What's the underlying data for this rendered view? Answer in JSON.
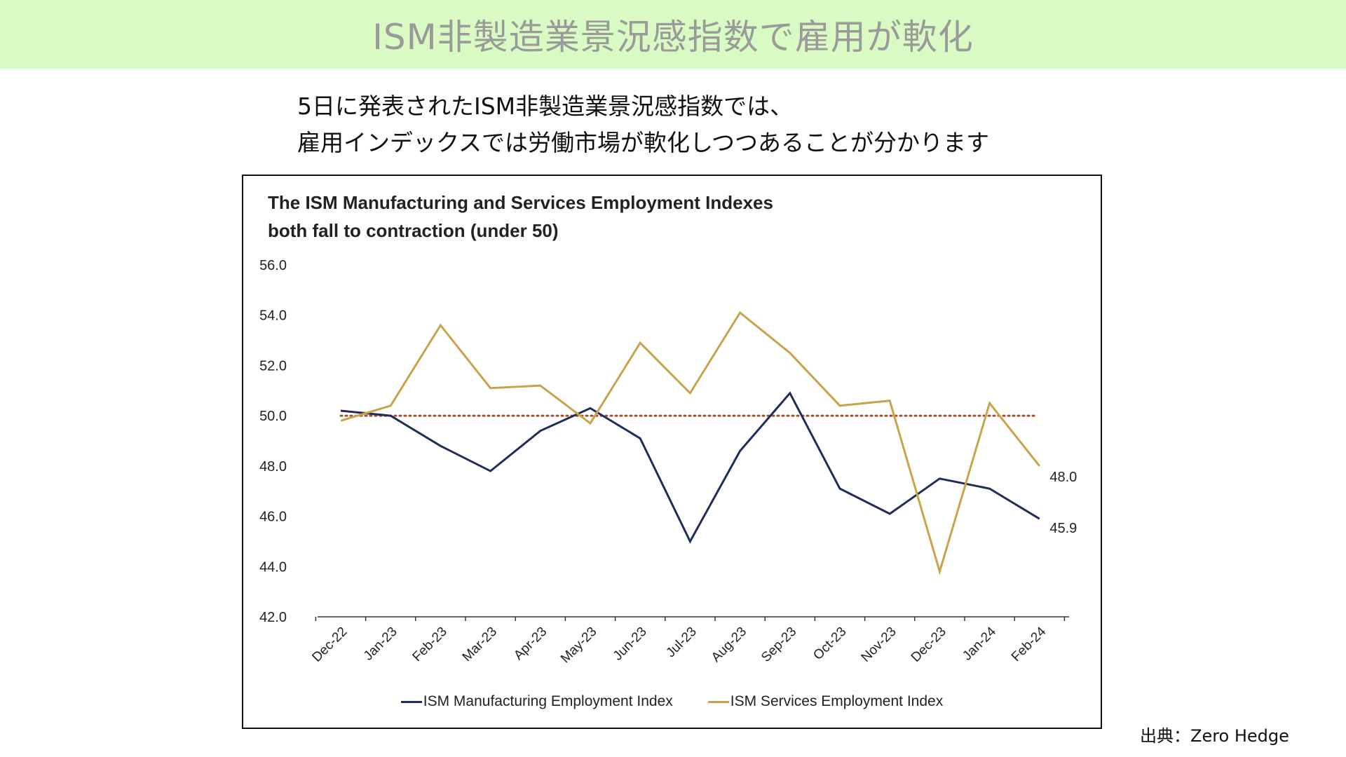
{
  "banner": {
    "title": "ISM非製造業景況感指数で雇用が軟化"
  },
  "intro": {
    "line1": "5日に発表されたISM非製造業景況感指数では、",
    "line2": "雇用インデックスでは労働市場が軟化しつつあることが分かります"
  },
  "source": "出典：Zero Hedge",
  "chart_data": {
    "type": "line",
    "title": "The ISM Manufacturing and Services Employment Indexes",
    "subtitle": "both fall to contraction (under 50)",
    "xlabel": "",
    "ylabel": "",
    "categories": [
      "Dec-22",
      "Jan-23",
      "Feb-23",
      "Mar-23",
      "Apr-23",
      "May-23",
      "Jun-23",
      "Jul-23",
      "Aug-23",
      "Sep-23",
      "Oct-23",
      "Nov-23",
      "Dec-23",
      "Jan-24",
      "Feb-24"
    ],
    "ylim": [
      42.0,
      56.0
    ],
    "yticks": [
      "42.0",
      "44.0",
      "46.0",
      "48.0",
      "50.0",
      "52.0",
      "54.0",
      "56.0"
    ],
    "reference_line": {
      "value": 50.0,
      "style": "dotted",
      "color": "#a0522d"
    },
    "grid": false,
    "legend_position": "bottom",
    "series": [
      {
        "name": "ISM Manufacturing Employment Index",
        "color": "#1f2d5c",
        "values": [
          50.2,
          50.0,
          48.8,
          47.8,
          49.4,
          50.3,
          49.1,
          45.0,
          48.6,
          50.9,
          47.1,
          46.1,
          47.5,
          47.1,
          45.9
        ],
        "end_label": "45.9"
      },
      {
        "name": "ISM Services Employment Index",
        "color": "#c9a24b",
        "values": [
          49.8,
          50.4,
          53.6,
          51.1,
          51.2,
          49.7,
          52.9,
          50.9,
          54.1,
          52.5,
          50.4,
          50.6,
          43.8,
          50.5,
          48.0
        ],
        "end_label": "48.0"
      }
    ]
  }
}
